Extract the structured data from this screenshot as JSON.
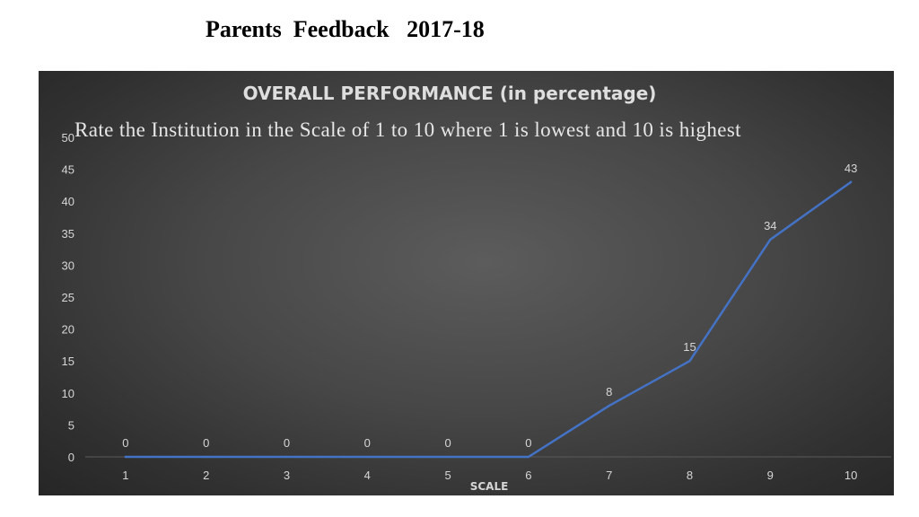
{
  "page": {
    "title": "Parents  Feedback   2017-18"
  },
  "chart_data": {
    "type": "line",
    "title": "OVERALL PERFORMANCE (in percentage)",
    "subtitle": "Rate the Institution in the Scale of 1 to 10 where 1 is lowest and 10 is highest",
    "xlabel": "SCALE",
    "ylabel": "",
    "categories": [
      "1",
      "2",
      "3",
      "4",
      "5",
      "6",
      "7",
      "8",
      "9",
      "10"
    ],
    "values": [
      0,
      0,
      0,
      0,
      0,
      0,
      8,
      15,
      34,
      43
    ],
    "ylim": [
      0,
      50
    ],
    "yticks": [
      0,
      5,
      10,
      15,
      20,
      25,
      30,
      35,
      40,
      45,
      50
    ],
    "grid": false,
    "legend": "none",
    "line_color": "#4472C4",
    "background_color": "#3c3c3c"
  }
}
